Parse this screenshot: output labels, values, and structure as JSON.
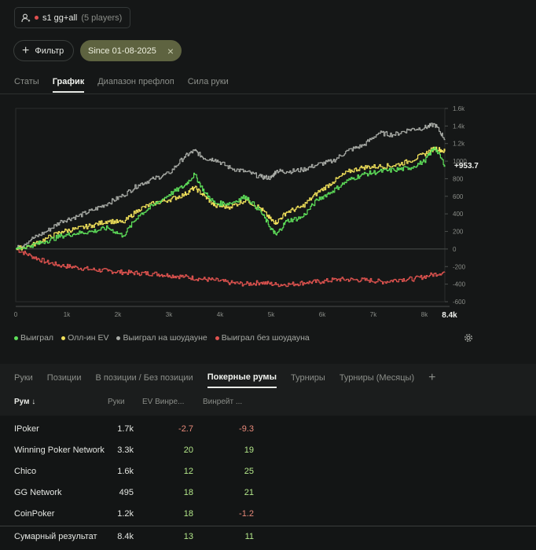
{
  "player": {
    "icon": "user-icon",
    "name": "s1 gg+all",
    "count": "(5 players)",
    "status_color": "#e05050"
  },
  "filters": {
    "add_label": "Фильтр",
    "date_chip": "Since 01-08-2025"
  },
  "top_tabs": [
    "Статы",
    "График",
    "Диапазон префлоп",
    "Сила руки"
  ],
  "top_active": 1,
  "chart_data": {
    "type": "line",
    "x_ticks": [
      "0",
      "1k",
      "2k",
      "3k",
      "4k",
      "5k",
      "6k",
      "7k",
      "8k"
    ],
    "x_end_label": "8.4k",
    "y_ticks": [
      "1.6k",
      "1.4k",
      "1.2k",
      "1000",
      "800",
      "600",
      "400",
      "200",
      "0",
      "-200",
      "-400",
      "-600"
    ],
    "ylim": [
      -600,
      1600
    ],
    "xlim": [
      0,
      8400
    ],
    "end_value_label": "+953.7",
    "series": [
      {
        "name": "Выиграл",
        "color": "#5ee05a",
        "x": [
          0,
          300,
          600,
          900,
          1200,
          1500,
          1800,
          2100,
          2400,
          2700,
          3000,
          3300,
          3500,
          3700,
          3900,
          4200,
          4500,
          4800,
          5000,
          5100,
          5300,
          5600,
          5900,
          6200,
          6500,
          6800,
          7100,
          7400,
          7700,
          8000,
          8200,
          8400
        ],
        "y": [
          0,
          40,
          90,
          150,
          180,
          200,
          240,
          150,
          380,
          500,
          620,
          720,
          850,
          640,
          520,
          520,
          600,
          420,
          230,
          160,
          320,
          360,
          560,
          660,
          780,
          850,
          880,
          900,
          920,
          1000,
          1160,
          954
        ]
      },
      {
        "name": "Олл-ин EV",
        "color": "#f0e05a",
        "x": [
          0,
          300,
          600,
          900,
          1200,
          1500,
          1800,
          2100,
          2400,
          2700,
          3000,
          3300,
          3500,
          3700,
          3900,
          4200,
          4500,
          4800,
          5000,
          5100,
          5300,
          5600,
          5900,
          6200,
          6500,
          6800,
          7100,
          7400,
          7700,
          8000,
          8200,
          8400
        ],
        "y": [
          0,
          40,
          120,
          200,
          230,
          270,
          320,
          300,
          450,
          520,
          560,
          620,
          700,
          600,
          490,
          480,
          560,
          460,
          330,
          300,
          420,
          480,
          640,
          760,
          880,
          930,
          940,
          950,
          1000,
          1080,
          1150,
          1110
        ]
      },
      {
        "name": "Выиграл на шоудауне",
        "color": "#a8aba6",
        "x": [
          0,
          300,
          600,
          900,
          1200,
          1500,
          1800,
          2100,
          2400,
          2700,
          3000,
          3300,
          3500,
          3700,
          3900,
          4200,
          4500,
          4800,
          5000,
          5100,
          5300,
          5600,
          5900,
          6200,
          6500,
          6800,
          7100,
          7400,
          7700,
          8000,
          8200,
          8400
        ],
        "y": [
          0,
          110,
          200,
          320,
          370,
          440,
          520,
          610,
          730,
          800,
          860,
          1050,
          1120,
          1030,
          1020,
          920,
          880,
          820,
          810,
          890,
          880,
          900,
          960,
          1000,
          1120,
          1180,
          1320,
          1300,
          1360,
          1380,
          1420,
          1250
        ]
      },
      {
        "name": "Выиграл без шоудауна",
        "color": "#e0534f",
        "x": [
          0,
          300,
          600,
          900,
          1200,
          1500,
          1800,
          2100,
          2400,
          2700,
          3000,
          3300,
          3600,
          3900,
          4200,
          4500,
          4800,
          5100,
          5400,
          5700,
          6000,
          6300,
          6600,
          6900,
          7200,
          7500,
          7800,
          8100,
          8400
        ],
        "y": [
          0,
          -80,
          -150,
          -190,
          -210,
          -235,
          -250,
          -265,
          -275,
          -280,
          -300,
          -315,
          -340,
          -355,
          -385,
          -400,
          -380,
          -405,
          -400,
          -380,
          -370,
          -345,
          -350,
          -355,
          -375,
          -345,
          -340,
          -300,
          -260
        ]
      }
    ]
  },
  "settings_icon": "gear-icon",
  "bottom_tabs": [
    "Руки",
    "Позиции",
    "В позиции / Без позиции",
    "Покерные румы",
    "Турниры",
    "Турниры (Месяцы)"
  ],
  "bottom_active": 3,
  "table": {
    "headers": {
      "room": "Рум ↓",
      "hands": "Руки",
      "ev": "EV Винре...",
      "wr": "Винрейт ..."
    },
    "rows": [
      {
        "room": "IPoker",
        "hands": "1.7k",
        "ev": "-2.7",
        "wr": "-9.3"
      },
      {
        "room": "Winning Poker Network",
        "hands": "3.3k",
        "ev": "20",
        "wr": "19"
      },
      {
        "room": "Chico",
        "hands": "1.6k",
        "ev": "12",
        "wr": "25"
      },
      {
        "room": "GG Network",
        "hands": "495",
        "ev": "18",
        "wr": "21"
      },
      {
        "room": "CoinPoker",
        "hands": "1.2k",
        "ev": "18",
        "wr": "-1.2"
      }
    ],
    "total": {
      "room": "Сумарный результат",
      "hands": "8.4k",
      "ev": "13",
      "wr": "11"
    }
  }
}
